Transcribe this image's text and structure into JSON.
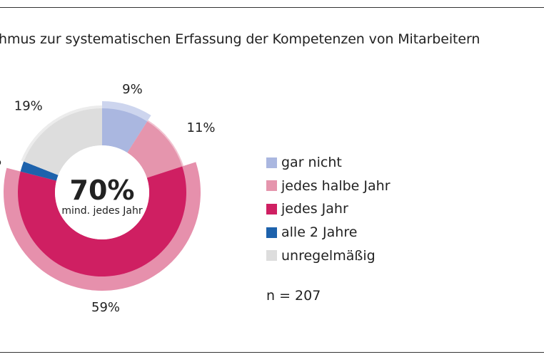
{
  "title": "hmus zur systematischen Erfassung der Kompetenzen von Mitarbeitern",
  "sample": "n = 207",
  "chart_data": {
    "type": "pie",
    "style": "donut",
    "center_value": "70%",
    "center_label": "mind. jedes Jahr",
    "slices": [
      {
        "name": "gar nicht",
        "value": 9,
        "label": "9%",
        "color": "#aab7e0",
        "outer_color": "#cdd5ee"
      },
      {
        "name": "jedes halbe Jahr",
        "value": 11,
        "label": "11%",
        "color": "#e595ad",
        "outer_color": "#f1c3d1"
      },
      {
        "name": "jedes Jahr",
        "value": 59,
        "label": "59%",
        "color": "#cf1f62",
        "outer_color": "#e690ac"
      },
      {
        "name": "alle 2 Jahre",
        "value": 2,
        "label": "%",
        "color": "#1d62ac",
        "outer_color": "#86a8d2"
      },
      {
        "name": "unregelmäßig",
        "value": 19,
        "label": "19%",
        "color": "#dddddd",
        "outer_color": "#ececec"
      }
    ]
  }
}
